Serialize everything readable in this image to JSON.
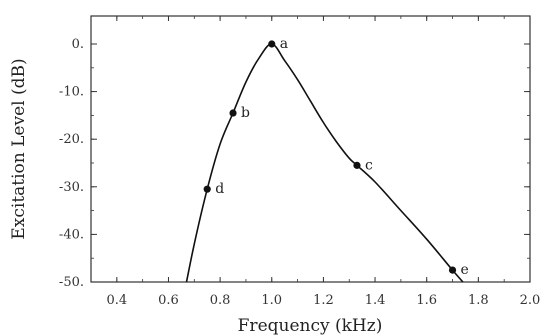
{
  "chart_data": {
    "type": "line",
    "title": "",
    "xlabel": "Frequency (kHz)",
    "ylabel": "Excitation Level (dB)",
    "xlim": [
      0.3,
      2.0
    ],
    "ylim": [
      -50,
      5
    ],
    "xticks": [
      0.4,
      0.6,
      0.8,
      1.0,
      1.2,
      1.4,
      1.6,
      1.8,
      2.0
    ],
    "xtick_labels": [
      "0.4",
      "0.6",
      "0.8",
      "1.0",
      "1.2",
      "1.4",
      "1.6",
      "1.8",
      "2.0"
    ],
    "yticks": [
      0,
      -10,
      -20,
      -30,
      -40,
      -50
    ],
    "ytick_labels": [
      "0.",
      "-10.",
      "-20.",
      "-30.",
      "-40.",
      "-50."
    ],
    "grid": false,
    "legend": "none",
    "series": [
      {
        "x": [
          0.67,
          0.7,
          0.75,
          0.8,
          0.85,
          0.9,
          0.95,
          1.0,
          1.05,
          1.1,
          1.15,
          1.2,
          1.25,
          1.3,
          1.33,
          1.4,
          1.5,
          1.6,
          1.7,
          1.74
        ],
        "y": [
          -50,
          -42,
          -30.5,
          -21,
          -14.5,
          -8,
          -3,
          0,
          -3.5,
          -7.5,
          -12,
          -16.5,
          -20.5,
          -24,
          -25.5,
          -29,
          -35,
          -41,
          -47.5,
          -50
        ],
        "color": "#111111"
      }
    ],
    "points": [
      {
        "label": "a",
        "x": 1.0,
        "y": 0
      },
      {
        "label": "b",
        "x": 0.85,
        "y": -14.5
      },
      {
        "label": "c",
        "x": 1.33,
        "y": -25.5
      },
      {
        "label": "d",
        "x": 0.75,
        "y": -30.5
      },
      {
        "label": "e",
        "x": 1.7,
        "y": -47.5
      }
    ]
  }
}
